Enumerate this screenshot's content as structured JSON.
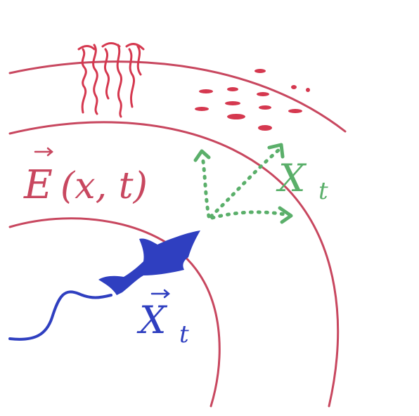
{
  "colors": {
    "background": "#ffffff",
    "field": "#c8475f",
    "fish": "#2f3fc0",
    "noise": "#d5384f",
    "velocity": "#5aaf6a"
  },
  "labels": {
    "field": {
      "name": "E",
      "args": "(x, t)"
    },
    "position": {
      "name": "X",
      "sub": "t"
    },
    "velocity": {
      "name": "X",
      "sub": "t"
    }
  },
  "icons": {
    "fish": "fish-icon",
    "field_arrow": "vector-arrow-icon",
    "position_arrow": "vector-arrow-icon"
  }
}
